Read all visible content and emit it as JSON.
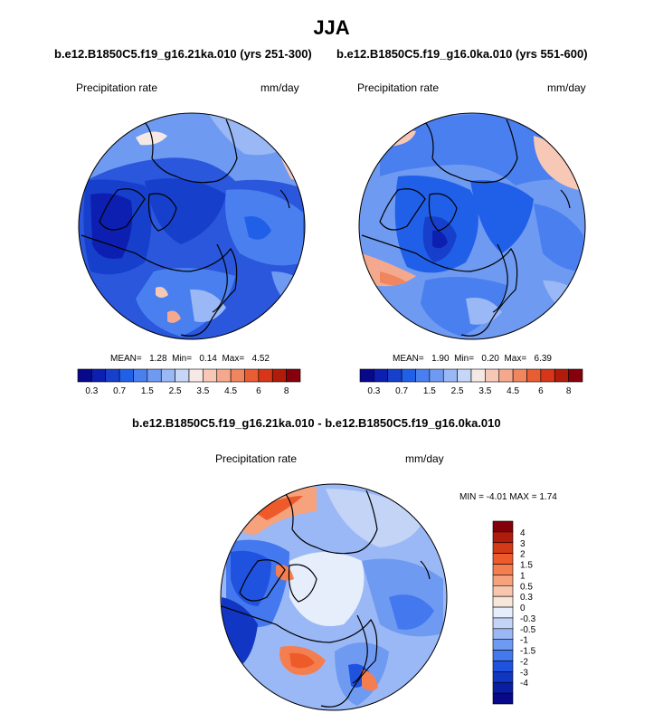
{
  "figure": {
    "title": "JJA",
    "panel_left": {
      "heading": "b.e12.B1850C5.f19_g16.21ka.010 (yrs 251-300)",
      "variable": "Precipitation rate",
      "units": "mm/day",
      "stats": {
        "mean_label": "MEAN=",
        "mean": "1.28",
        "min_label": "Min=",
        "min": "0.14",
        "max_label": "Max=",
        "max": "4.52"
      }
    },
    "panel_right": {
      "heading": "b.e12.B1850C5.f19_g16.0ka.010 (yrs 551-600)",
      "variable": "Precipitation rate",
      "units": "mm/day",
      "stats": {
        "mean_label": "MEAN=",
        "mean": "1.90",
        "min_label": "Min=",
        "min": "0.20",
        "max_label": "Max=",
        "max": "6.39"
      }
    },
    "panel_diff": {
      "heading": "b.e12.B1850C5.f19_g16.21ka.010 - b.e12.B1850C5.f19_g16.0ka.010",
      "variable": "Precipitation rate",
      "units": "mm/day",
      "minmax": "MIN = -4.01 MAX =  1.74"
    },
    "abs_colorbar": {
      "colors": [
        "#08088a",
        "#0d1fb0",
        "#1640cc",
        "#2060e8",
        "#4a7ff0",
        "#6f9af2",
        "#9ab8f5",
        "#c6d6f6",
        "#f6e9e5",
        "#f8c8b6",
        "#f4a98e",
        "#f0865f",
        "#e95d32",
        "#d8361a",
        "#b01c0c",
        "#85000a"
      ],
      "tick_labels": [
        "0.3",
        "0.7",
        "1.5",
        "2.5",
        "3.5",
        "4.5",
        "6",
        "8"
      ]
    },
    "diff_colorbar": {
      "colors": [
        "#84000a",
        "#b01c0c",
        "#d23a18",
        "#ee5a2a",
        "#f57e50",
        "#f6a27c",
        "#f8c6ad",
        "#f7e6dc",
        "#e6eefb",
        "#c3d4f6",
        "#9ab8f5",
        "#6f9af2",
        "#4478ee",
        "#2052e0",
        "#1236c4",
        "#0a1ea3",
        "#07088a"
      ],
      "labels": [
        "4",
        "3",
        "2",
        "1.5",
        "1",
        "0.5",
        "0.3",
        "0",
        "-0.3",
        "-0.5",
        "-1",
        "-1.5",
        "-2",
        "-3",
        "-4"
      ]
    }
  }
}
